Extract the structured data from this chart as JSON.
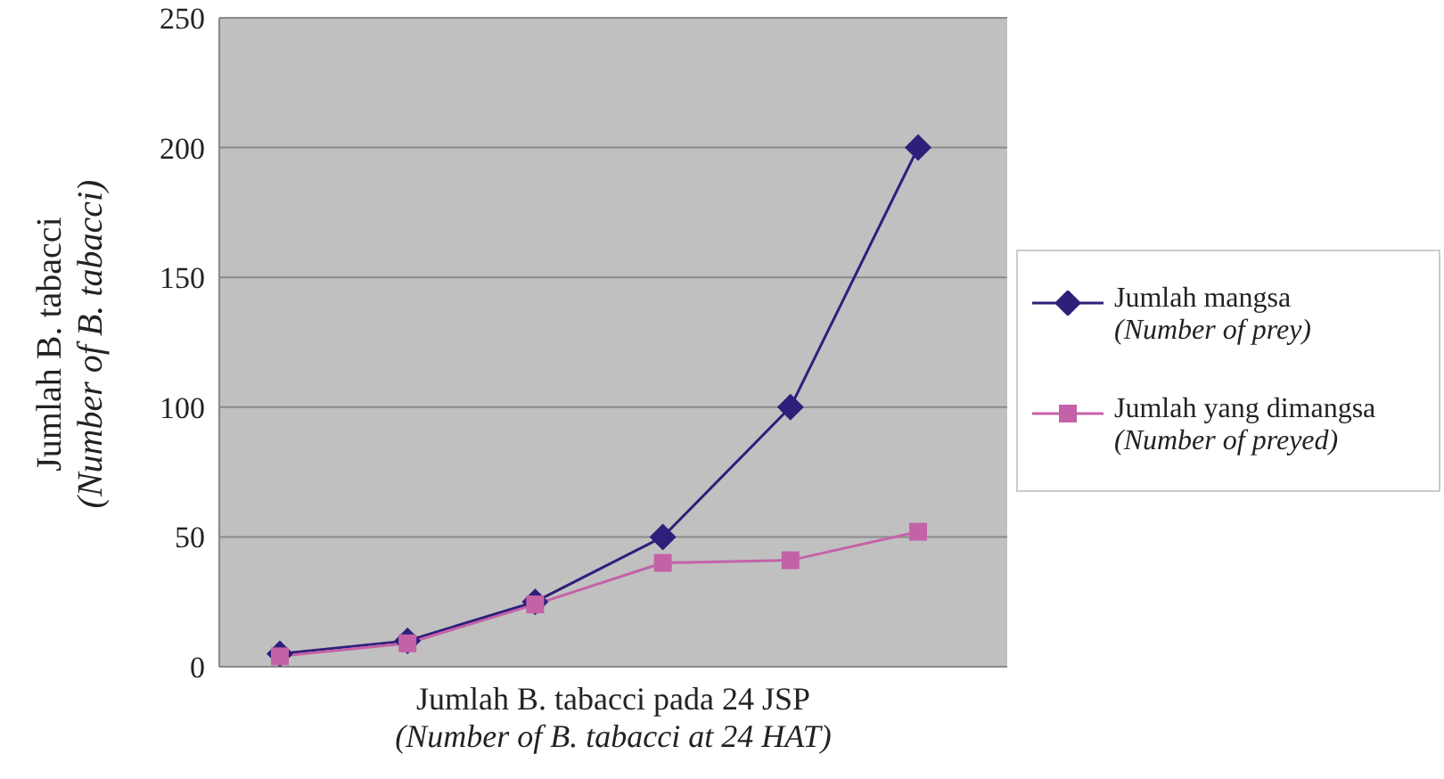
{
  "chart_data": {
    "type": "line",
    "xlabel": "Jumlah B. tabacci pada 24 JSP\n(Number of B. tabacci at 24 HAT)",
    "ylabel": "Jumlah B. tabacci\n(Number of B. tabacci)",
    "categories": [
      null,
      null,
      null,
      null,
      null,
      null
    ],
    "series": [
      {
        "name": "Jumlah mangsa\n(Number of prey)",
        "color": "#2e1f7a",
        "marker": "diamond",
        "values": [
          5,
          10,
          25,
          50,
          100,
          200
        ]
      },
      {
        "name": "Jumlah yang dimangsa\n(Number of preyed)",
        "color": "#c462a8",
        "marker": "square",
        "values": [
          4,
          9,
          24,
          40,
          41,
          52
        ]
      }
    ],
    "ylim": [
      0,
      250
    ],
    "yticks": [
      0,
      50,
      100,
      150,
      200,
      250
    ],
    "grid": "y",
    "legend": "right",
    "tick_labels": "y",
    "line_style": "solid"
  }
}
